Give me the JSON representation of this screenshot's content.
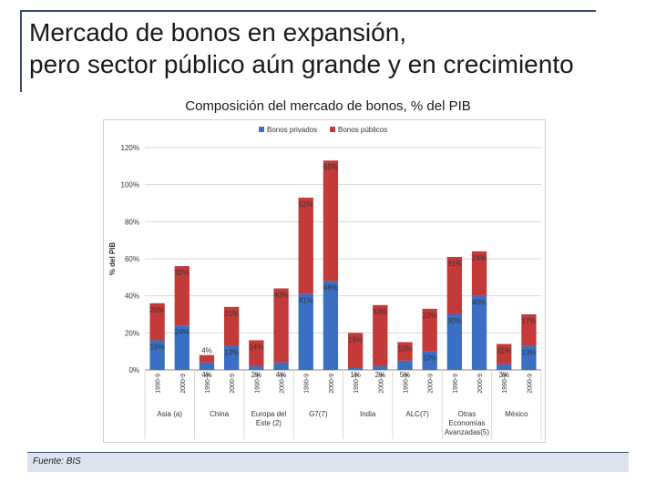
{
  "slide": {
    "title_line1": "Mercado de bonos en expansión,",
    "title_line2": "pero sector público aún grande y en crecimiento",
    "chart_heading": "Composición del mercado de bonos, % del PIB",
    "source": "Fuente: BIS"
  },
  "colors": {
    "private": "#3a6fc4",
    "public": "#c43a38",
    "grid": "#d9d9d9",
    "axis": "#888888",
    "label": "#333333"
  },
  "chart_data": {
    "type": "bar",
    "stacked": true,
    "title": "Composición del mercado de bonos, % del PIB",
    "ylabel": "% del PIB",
    "ylim": [
      0,
      120
    ],
    "yticks": [
      "0%",
      "20%",
      "40%",
      "60%",
      "80%",
      "100%",
      "120%"
    ],
    "legend": {
      "position": "top",
      "entries": [
        "Bonos privados",
        "Bonos públicos"
      ]
    },
    "categories": [
      "1990-9",
      "2000-9",
      "1990-9",
      "2000-9",
      "1990-9",
      "2000-9",
      "1990-9",
      "2000-9",
      "1990-9",
      "2000-9",
      "1990-9",
      "2000-9",
      "1990-9",
      "2000-9",
      "1990-9",
      "2000-9"
    ],
    "groups": [
      {
        "label": "Asia (a)",
        "bars": [
          0,
          1
        ]
      },
      {
        "label": "China",
        "bars": [
          2,
          3
        ]
      },
      {
        "label": "Europa del Este (2)",
        "bars": [
          4,
          5
        ]
      },
      {
        "label": "G7(7)",
        "bars": [
          6,
          7
        ]
      },
      {
        "label": "India",
        "bars": [
          8,
          9
        ]
      },
      {
        "label": "ALC(7)",
        "bars": [
          10,
          11
        ]
      },
      {
        "label": "Otras Economías Avanzadas(5)",
        "bars": [
          12,
          13
        ]
      },
      {
        "label": "México",
        "bars": [
          14,
          15
        ]
      }
    ],
    "series": [
      {
        "name": "Bonos privados",
        "values": [
          16,
          24,
          4,
          13,
          2,
          4,
          41,
          48,
          1,
          2,
          5,
          10,
          30,
          40,
          3,
          13
        ],
        "labels": [
          "16%",
          "24%",
          "4%",
          "13%",
          "2%",
          "4%",
          "41%",
          "48%",
          "1%",
          "2%",
          "5%",
          "10%",
          "30%",
          "40%",
          "3%",
          "13%"
        ]
      },
      {
        "name": "Bonos públicos",
        "values": [
          20,
          32,
          4,
          21,
          14,
          40,
          52,
          65,
          19,
          33,
          10,
          23,
          31,
          24,
          11,
          17
        ],
        "labels": [
          "20%",
          "32%",
          "4%",
          "21%",
          "14%",
          "40%",
          "52%",
          "65%",
          "19%",
          "33%",
          "10%",
          "23%",
          "31%",
          "24%",
          "11%",
          "17%"
        ]
      }
    ]
  }
}
